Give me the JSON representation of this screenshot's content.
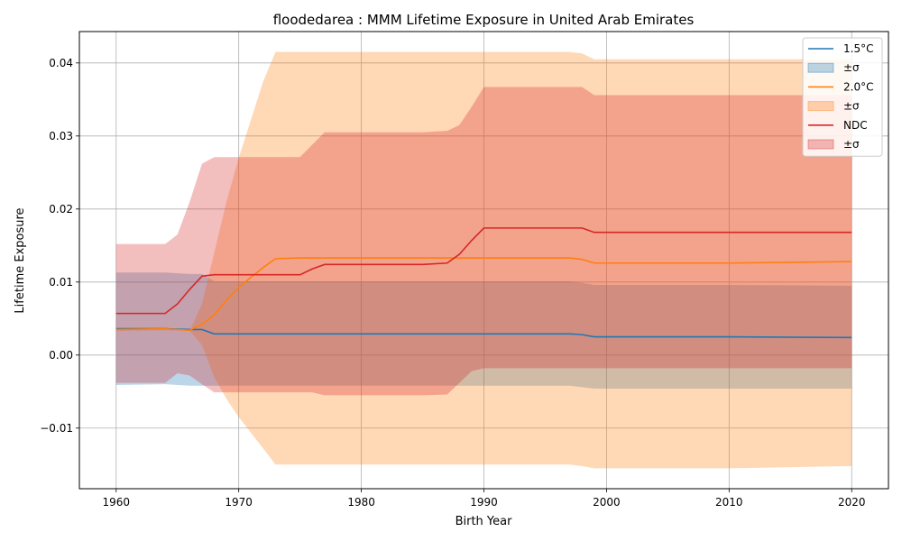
{
  "chart_data": {
    "type": "area",
    "title": "floodedarea : MMM Lifetime Exposure in United Arab Emirates",
    "xlabel": "Birth Year",
    "ylabel": "Lifetime Exposure",
    "xlim": [
      1957,
      2023
    ],
    "ylim": [
      -0.0183,
      0.0443
    ],
    "xticks": [
      1960,
      1970,
      1980,
      1990,
      2000,
      2010,
      2020
    ],
    "xtick_labels": [
      "1960",
      "1970",
      "1980",
      "1990",
      "2000",
      "2010",
      "2020"
    ],
    "yticks": [
      -0.01,
      0.0,
      0.01,
      0.02,
      0.03,
      0.04
    ],
    "ytick_labels": [
      "−0.01",
      "0.00",
      "0.01",
      "0.02",
      "0.03",
      "0.04"
    ],
    "grid": true,
    "legend_position": "top-right",
    "legend": [
      "1.5°C",
      "±σ",
      "2.0°C",
      "±σ",
      "NDC",
      "±σ"
    ],
    "series": [
      {
        "name": "1.5°C",
        "color": "#1f77b4",
        "band_label": "±σ",
        "x": [
          1960,
          1964,
          1966,
          1967,
          1968,
          1975,
          1985,
          1997,
          1998,
          1999,
          2010,
          2020
        ],
        "mean": [
          0.0036,
          0.0036,
          0.0035,
          0.0035,
          0.0029,
          0.0029,
          0.0029,
          0.0029,
          0.0028,
          0.0025,
          0.0025,
          0.0024
        ],
        "upper": [
          0.0113,
          0.0113,
          0.0111,
          0.0111,
          0.0101,
          0.0101,
          0.0101,
          0.0101,
          0.0099,
          0.0096,
          0.0096,
          0.0095
        ],
        "lower": [
          -0.0041,
          -0.004,
          -0.0042,
          -0.0042,
          -0.0042,
          -0.0042,
          -0.0042,
          -0.0042,
          -0.0044,
          -0.0046,
          -0.0046,
          -0.0046
        ]
      },
      {
        "name": "2.0°C",
        "color": "#ff7f0e",
        "band_label": "±σ",
        "x": [
          1960,
          1964,
          1966,
          1967,
          1968,
          1969,
          1970,
          1972,
          1973,
          1975,
          1985,
          1997,
          1998,
          1999,
          2010,
          2020
        ],
        "mean": [
          0.0035,
          0.0036,
          0.0034,
          0.0042,
          0.0055,
          0.0075,
          0.0093,
          0.012,
          0.0132,
          0.0133,
          0.0133,
          0.0133,
          0.0131,
          0.0126,
          0.0126,
          0.0128
        ],
        "upper": [
          0.0038,
          0.0038,
          0.0033,
          0.007,
          0.014,
          0.021,
          0.027,
          0.0375,
          0.0415,
          0.0415,
          0.0415,
          0.0415,
          0.0413,
          0.0405,
          0.0405,
          0.0405
        ],
        "lower": [
          0.0033,
          0.0034,
          0.0033,
          0.0014,
          -0.003,
          -0.006,
          -0.0085,
          -0.0128,
          -0.015,
          -0.015,
          -0.015,
          -0.015,
          -0.0152,
          -0.0155,
          -0.0155,
          -0.0152
        ]
      },
      {
        "name": "NDC",
        "color": "#d62728",
        "band_label": "±σ",
        "x": [
          1960,
          1964,
          1965,
          1966,
          1967,
          1968,
          1975,
          1976,
          1977,
          1985,
          1987,
          1988,
          1989,
          1990,
          1998,
          1999,
          2010,
          2020
        ],
        "mean": [
          0.0057,
          0.0057,
          0.007,
          0.009,
          0.0108,
          0.011,
          0.011,
          0.0118,
          0.0124,
          0.0124,
          0.0126,
          0.0138,
          0.0157,
          0.0174,
          0.0174,
          0.0168,
          0.0168,
          0.0168
        ],
        "upper": [
          0.0152,
          0.0152,
          0.0165,
          0.021,
          0.0262,
          0.0271,
          0.0271,
          0.0288,
          0.0305,
          0.0305,
          0.0307,
          0.0315,
          0.034,
          0.0367,
          0.0367,
          0.0356,
          0.0356,
          0.0356
        ],
        "lower": [
          -0.0038,
          -0.0038,
          -0.0025,
          -0.0028,
          -0.004,
          -0.0051,
          -0.0051,
          -0.0051,
          -0.0055,
          -0.0055,
          -0.0054,
          -0.0038,
          -0.0022,
          -0.0018,
          -0.0018,
          -0.0018,
          -0.0018,
          -0.0018
        ]
      }
    ]
  }
}
